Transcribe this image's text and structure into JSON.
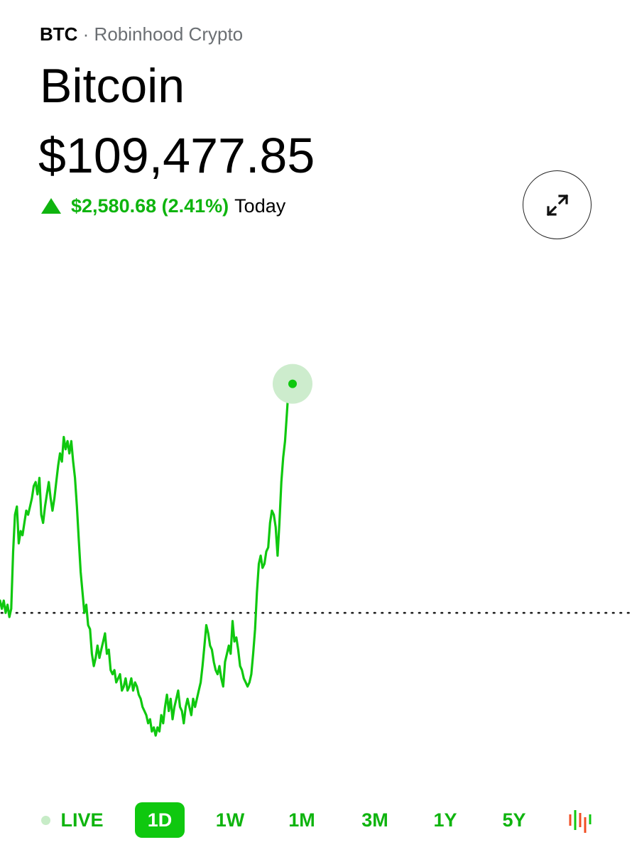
{
  "asset": {
    "ticker": "BTC",
    "exchange": "· Robinhood Crypto",
    "name": "Bitcoin",
    "price": "$109,477.85"
  },
  "change": {
    "value": "$2,580.68 (2.41%)",
    "period": "Today",
    "direction": "up",
    "color": "#0fb40f"
  },
  "controls": {
    "expand_icon": "expand-arrows-icon"
  },
  "ranges": {
    "live": "LIVE",
    "items": [
      "1D",
      "1W",
      "1M",
      "3M",
      "1Y",
      "5Y"
    ],
    "selected": "1D",
    "chart_type_icon": "candlestick-icon"
  },
  "chart_data": {
    "type": "line",
    "color": "#0fc80f",
    "baseline_style": "dotted",
    "grid": false,
    "title": "",
    "xlabel": "",
    "ylabel": "",
    "ylim": [
      0,
      1
    ],
    "baseline": 0.3,
    "values": [
      0.33,
      0.31,
      0.33,
      0.3,
      0.32,
      0.29,
      0.31,
      0.45,
      0.54,
      0.56,
      0.47,
      0.5,
      0.49,
      0.52,
      0.55,
      0.54,
      0.56,
      0.58,
      0.61,
      0.62,
      0.59,
      0.63,
      0.54,
      0.52,
      0.56,
      0.59,
      0.62,
      0.58,
      0.55,
      0.58,
      0.62,
      0.66,
      0.69,
      0.67,
      0.73,
      0.7,
      0.72,
      0.69,
      0.72,
      0.67,
      0.63,
      0.56,
      0.48,
      0.4,
      0.35,
      0.3,
      0.32,
      0.27,
      0.26,
      0.2,
      0.17,
      0.19,
      0.22,
      0.19,
      0.21,
      0.23,
      0.25,
      0.2,
      0.21,
      0.16,
      0.15,
      0.16,
      0.13,
      0.14,
      0.15,
      0.11,
      0.12,
      0.14,
      0.11,
      0.12,
      0.14,
      0.11,
      0.13,
      0.12,
      0.1,
      0.09,
      0.07,
      0.06,
      0.05,
      0.03,
      0.04,
      0.01,
      0.02,
      0.0,
      0.02,
      0.01,
      0.05,
      0.03,
      0.07,
      0.1,
      0.06,
      0.09,
      0.04,
      0.07,
      0.09,
      0.11,
      0.07,
      0.06,
      0.03,
      0.07,
      0.09,
      0.07,
      0.05,
      0.09,
      0.07,
      0.09,
      0.11,
      0.13,
      0.17,
      0.22,
      0.27,
      0.25,
      0.22,
      0.21,
      0.18,
      0.16,
      0.15,
      0.17,
      0.14,
      0.12,
      0.18,
      0.2,
      0.22,
      0.2,
      0.28,
      0.23,
      0.24,
      0.21,
      0.17,
      0.16,
      0.14,
      0.13,
      0.12,
      0.13,
      0.15,
      0.2,
      0.26,
      0.35,
      0.42,
      0.44,
      0.41,
      0.42,
      0.45,
      0.46,
      0.52,
      0.55,
      0.54,
      0.51,
      0.44,
      0.52,
      0.62,
      0.68,
      0.72,
      0.79,
      0.86,
      0.9,
      0.86
    ]
  }
}
